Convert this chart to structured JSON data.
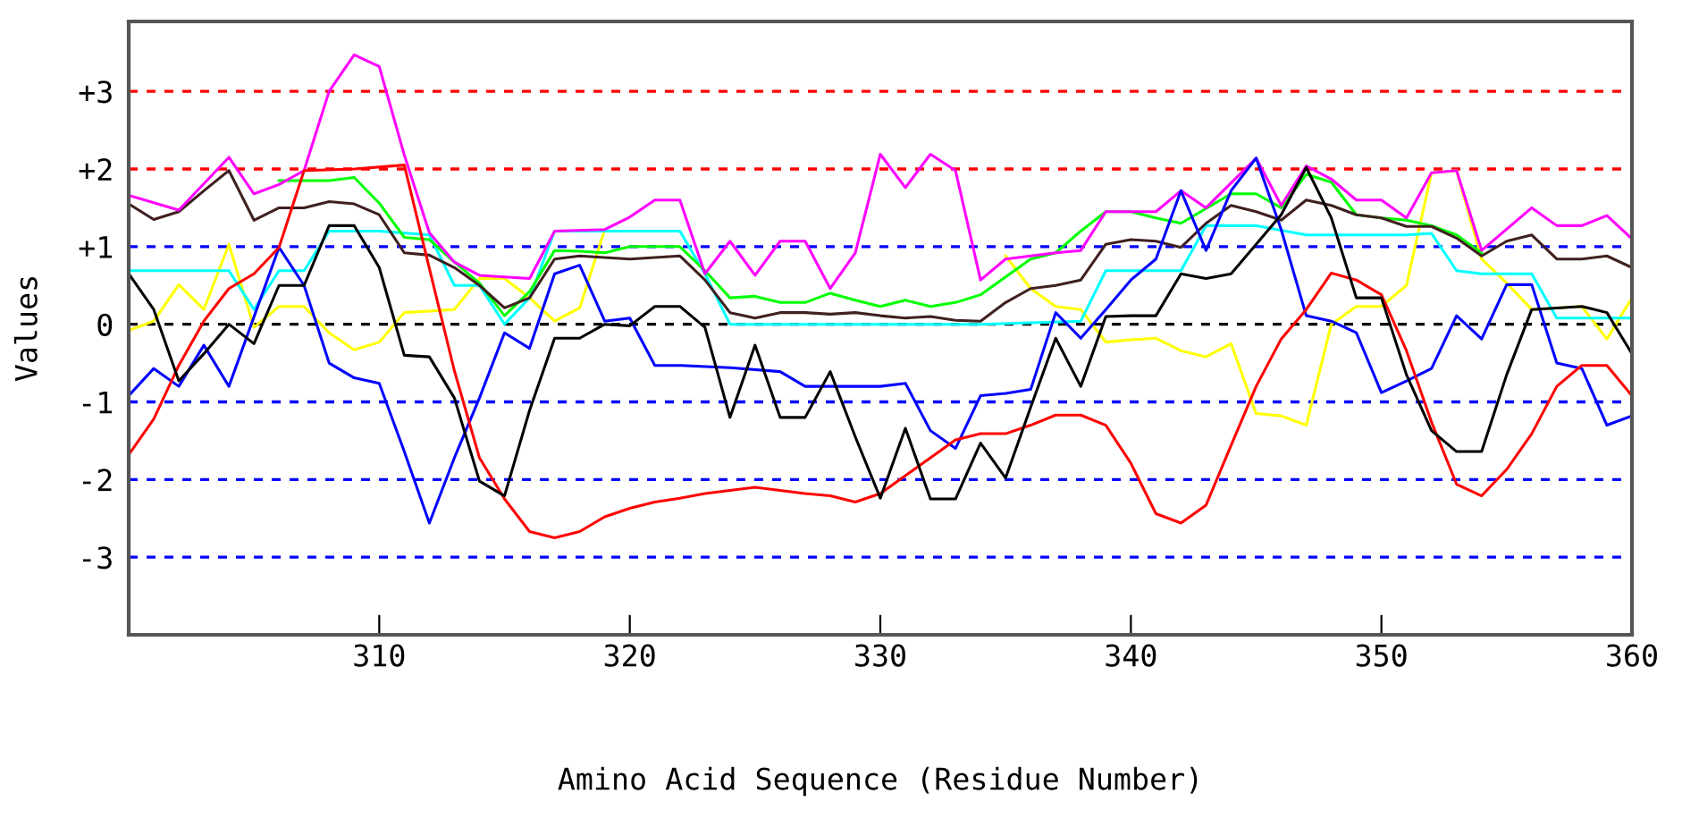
{
  "chart_data": {
    "type": "line",
    "xlabel": "Amino Acid Sequence (Residue Number)",
    "ylabel": "Values",
    "xlim": [
      300,
      360
    ],
    "xticks": [
      310,
      320,
      330,
      340,
      350,
      360
    ],
    "ylim": [
      -4,
      3.9
    ],
    "yticks": [
      {
        "value": 3,
        "label": "+3"
      },
      {
        "value": 2,
        "label": "+2"
      },
      {
        "value": 1,
        "label": "+1"
      },
      0,
      {
        "value": -1,
        "label": "-1"
      },
      {
        "value": -2,
        "label": "-2"
      },
      {
        "value": -3,
        "label": "-3"
      }
    ],
    "grid": false,
    "legend": false,
    "marker": "none",
    "line_style": "solid",
    "ref_lines": [
      {
        "axis": "y",
        "value": 3,
        "color": "#ff0000",
        "line_style": "dashed"
      },
      {
        "axis": "y",
        "value": 2,
        "color": "#ff0000",
        "line_style": "dashed"
      },
      {
        "axis": "y",
        "value": 1,
        "color": "#0000ff",
        "line_style": "dashed"
      },
      {
        "axis": "y",
        "value": 0,
        "color": "#000000",
        "line_style": "dashed"
      },
      {
        "axis": "y",
        "value": -1,
        "color": "#0000ff",
        "line_style": "dashed"
      },
      {
        "axis": "y",
        "value": -2,
        "color": "#0000ff",
        "line_style": "dashed"
      },
      {
        "axis": "y",
        "value": -3,
        "color": "#0000ff",
        "line_style": "dashed"
      }
    ],
    "series": [
      {
        "color": "#ffff00",
        "x": [
          300,
          301,
          302,
          303,
          304,
          305,
          306,
          307,
          308,
          309,
          310,
          311,
          313,
          314,
          315,
          316,
          317,
          318,
          319,
          320,
          334,
          335,
          336,
          337,
          338,
          339,
          340,
          341,
          342,
          343,
          344,
          345,
          346,
          347,
          348,
          349,
          350,
          351,
          352,
          353,
          354,
          355,
          356,
          358,
          359,
          360
        ],
        "values": [
          -0.08,
          0.04,
          0.51,
          0.19,
          1.03,
          -0.04,
          0.23,
          0.23,
          -0.11,
          -0.33,
          -0.23,
          0.15,
          0.19,
          0.59,
          0.59,
          0.34,
          0.04,
          0.21,
          1.22,
          null,
          null,
          0.88,
          0.46,
          0.23,
          0.19,
          -0.23,
          -0.2,
          -0.18,
          -0.34,
          -0.42,
          -0.25,
          -1.15,
          -1.18,
          -1.3,
          0.0,
          0.23,
          0.23,
          0.5,
          1.95,
          1.98,
          0.84,
          0.53,
          0.19,
          0.23,
          -0.19,
          0.34
        ]
      },
      {
        "color": "#00ffff",
        "x": [
          300,
          304,
          305,
          306,
          307,
          308,
          310,
          312,
          313,
          314,
          315,
          316,
          317,
          320,
          322,
          323,
          324,
          334,
          338,
          339,
          340,
          342,
          343,
          345,
          347,
          351,
          352,
          353,
          354,
          356,
          357,
          360
        ],
        "values": [
          0.69,
          0.69,
          0.19,
          0.69,
          0.69,
          1.2,
          1.2,
          1.15,
          0.5,
          0.5,
          0.0,
          0.34,
          1.2,
          1.2,
          1.2,
          0.65,
          0.0,
          0.0,
          0.04,
          0.69,
          0.69,
          0.69,
          1.27,
          1.27,
          1.15,
          1.15,
          1.17,
          0.69,
          0.65,
          0.65,
          0.08,
          0.08
        ]
      },
      {
        "color": "#00ff00",
        "x": [
          306,
          308,
          309,
          310,
          311,
          312,
          313,
          314,
          315,
          316,
          317,
          318,
          319,
          320,
          322,
          323,
          324,
          325,
          326,
          327,
          328,
          329,
          330,
          331,
          332,
          333,
          334,
          335,
          336,
          337,
          338,
          339,
          340,
          341,
          342,
          343,
          344,
          345,
          346,
          347,
          348,
          349,
          350,
          351,
          352,
          353,
          354
        ],
        "values": [
          1.85,
          1.85,
          1.89,
          1.56,
          1.12,
          1.09,
          0.8,
          0.53,
          0.11,
          0.42,
          0.95,
          0.94,
          0.92,
          1.0,
          1.0,
          0.69,
          0.34,
          0.36,
          0.28,
          0.28,
          0.4,
          0.31,
          0.23,
          0.31,
          0.23,
          0.28,
          0.38,
          0.61,
          0.84,
          0.92,
          1.2,
          1.45,
          1.45,
          1.37,
          1.3,
          1.49,
          1.68,
          1.68,
          1.5,
          1.93,
          1.83,
          1.41,
          1.37,
          1.34,
          1.27,
          1.15,
          0.92
        ]
      },
      {
        "color": "#402020",
        "x": [
          300,
          301,
          302,
          303,
          304,
          305,
          306,
          307,
          308,
          309,
          310,
          311,
          312,
          313,
          314,
          315,
          316,
          317,
          318,
          320,
          322,
          323,
          324,
          325,
          326,
          327,
          328,
          329,
          330,
          331,
          332,
          333,
          334,
          335,
          336,
          337,
          338,
          339,
          340,
          341,
          342,
          343,
          344,
          345,
          346,
          347,
          348,
          349,
          350,
          351,
          352,
          353,
          354,
          355,
          356,
          357,
          358,
          359,
          360
        ],
        "values": [
          1.55,
          1.35,
          1.45,
          1.72,
          1.98,
          1.34,
          1.5,
          1.5,
          1.58,
          1.55,
          1.41,
          0.92,
          0.89,
          0.73,
          0.5,
          0.21,
          0.34,
          0.84,
          0.88,
          0.84,
          0.88,
          0.57,
          0.15,
          0.08,
          0.15,
          0.15,
          0.13,
          0.15,
          0.11,
          0.08,
          0.1,
          0.05,
          0.04,
          0.28,
          0.46,
          0.5,
          0.57,
          1.03,
          1.09,
          1.07,
          0.99,
          1.3,
          1.53,
          1.45,
          1.34,
          1.6,
          1.53,
          1.41,
          1.37,
          1.26,
          1.26,
          1.11,
          0.88,
          1.07,
          1.15,
          0.84,
          0.84,
          0.88,
          0.73
        ]
      },
      {
        "color": "#ff00ff",
        "x": [
          300,
          302,
          304,
          305,
          306,
          307,
          308,
          309,
          310,
          311,
          312,
          313,
          314,
          316,
          317,
          319,
          320,
          321,
          322,
          323,
          324,
          325,
          326,
          327,
          328,
          329,
          330,
          331,
          332,
          333,
          334,
          335,
          336,
          337,
          338,
          339,
          341,
          342,
          343,
          345,
          346,
          347,
          348,
          349,
          350,
          351,
          352,
          353,
          354,
          356,
          357,
          358,
          359,
          360
        ],
        "values": [
          1.66,
          1.47,
          2.15,
          1.68,
          1.8,
          1.98,
          3.0,
          3.47,
          3.32,
          2.18,
          1.18,
          0.8,
          0.63,
          0.59,
          1.2,
          1.22,
          1.38,
          1.6,
          1.6,
          0.65,
          1.07,
          0.63,
          1.07,
          1.07,
          0.46,
          0.92,
          2.19,
          1.76,
          2.19,
          1.98,
          0.57,
          0.84,
          0.88,
          0.92,
          0.95,
          1.45,
          1.45,
          1.72,
          1.5,
          2.14,
          1.53,
          2.04,
          1.87,
          1.6,
          1.6,
          1.37,
          1.95,
          1.98,
          0.95,
          1.5,
          1.27,
          1.27,
          1.4,
          1.1
        ]
      },
      {
        "color": "#0000ff",
        "x": [
          300,
          301,
          302,
          303,
          304,
          306,
          307,
          308,
          309,
          310,
          311,
          312,
          313,
          314,
          315,
          316,
          317,
          318,
          319,
          320,
          321,
          322,
          324,
          326,
          327,
          328,
          330,
          331,
          332,
          333,
          334,
          335,
          336,
          337,
          338,
          339,
          340,
          341,
          342,
          343,
          344,
          345,
          346,
          347,
          348,
          349,
          350,
          351,
          352,
          353,
          354,
          355,
          356,
          357,
          358,
          359,
          360
        ],
        "values": [
          -0.92,
          -0.57,
          -0.8,
          -0.27,
          -0.8,
          0.99,
          0.5,
          -0.5,
          -0.69,
          -0.76,
          -1.64,
          -2.56,
          -1.72,
          -0.95,
          -0.11,
          -0.31,
          0.65,
          0.76,
          0.04,
          0.08,
          -0.53,
          -0.53,
          -0.56,
          -0.61,
          -0.8,
          -0.8,
          -0.8,
          -0.76,
          -1.37,
          -1.6,
          -0.92,
          -0.89,
          -0.84,
          0.15,
          -0.18,
          0.19,
          0.57,
          0.84,
          1.72,
          0.95,
          1.72,
          2.14,
          1.22,
          0.11,
          0.04,
          -0.11,
          -0.88,
          -0.73,
          -0.57,
          0.11,
          -0.19,
          0.51,
          0.51,
          -0.5,
          -0.57,
          -1.3,
          -1.18
        ]
      },
      {
        "color": "#ff0000",
        "x": [
          300,
          301,
          302,
          303,
          304,
          305,
          306,
          307,
          309,
          311,
          312,
          313,
          314,
          315,
          316,
          317,
          318,
          319,
          320,
          321,
          322,
          323,
          324,
          325,
          326,
          327,
          328,
          329,
          330,
          331,
          332,
          333,
          334,
          335,
          336,
          337,
          338,
          339,
          340,
          341,
          342,
          343,
          344,
          345,
          346,
          347,
          348,
          349,
          350,
          351,
          352,
          353,
          354,
          355,
          356,
          357,
          358,
          359,
          360
        ],
        "values": [
          -1.68,
          -1.22,
          -0.53,
          0.04,
          0.46,
          0.65,
          0.99,
          1.98,
          2.0,
          2.05,
          0.72,
          -0.6,
          -1.72,
          -2.25,
          -2.67,
          -2.75,
          -2.67,
          -2.48,
          -2.37,
          -2.29,
          -2.24,
          -2.18,
          -2.14,
          -2.1,
          -2.14,
          -2.18,
          -2.21,
          -2.29,
          -2.18,
          -1.95,
          -1.72,
          -1.49,
          -1.41,
          -1.41,
          -1.3,
          -1.17,
          -1.17,
          -1.3,
          -1.79,
          -2.44,
          -2.56,
          -2.33,
          -1.56,
          -0.8,
          -0.19,
          0.19,
          0.66,
          0.57,
          0.38,
          -0.34,
          -1.26,
          -2.06,
          -2.21,
          -1.87,
          -1.41,
          -0.8,
          -0.53,
          -0.53,
          -0.92
        ]
      },
      {
        "color": "#000000",
        "x": [
          300,
          301,
          302,
          303,
          304,
          305,
          306,
          307,
          308,
          309,
          310,
          311,
          312,
          313,
          314,
          315,
          316,
          317,
          318,
          319,
          320,
          321,
          322,
          323,
          324,
          325,
          326,
          327,
          328,
          329,
          330,
          331,
          332,
          333,
          334,
          335,
          336,
          337,
          338,
          339,
          340,
          341,
          342,
          343,
          344,
          345,
          346,
          347,
          348,
          349,
          350,
          351,
          352,
          353,
          354,
          355,
          356,
          358,
          359,
          360
        ],
        "values": [
          0.65,
          0.19,
          -0.73,
          -0.38,
          0.0,
          -0.25,
          0.5,
          0.5,
          1.27,
          1.27,
          0.73,
          -0.4,
          -0.42,
          -0.95,
          -2.02,
          -2.21,
          -1.11,
          -0.18,
          -0.18,
          0.0,
          -0.02,
          0.23,
          0.23,
          -0.04,
          -1.2,
          -0.27,
          -1.2,
          -1.2,
          -0.61,
          -1.45,
          -2.24,
          -1.34,
          -2.25,
          -2.25,
          -1.53,
          -1.98,
          -1.07,
          -0.18,
          -0.8,
          0.1,
          0.11,
          0.11,
          0.65,
          0.59,
          0.65,
          1.03,
          1.41,
          2.02,
          1.37,
          0.34,
          0.34,
          -0.65,
          -1.37,
          -1.64,
          -1.64,
          -0.65,
          0.19,
          0.23,
          0.15,
          -0.38
        ]
      }
    ]
  }
}
